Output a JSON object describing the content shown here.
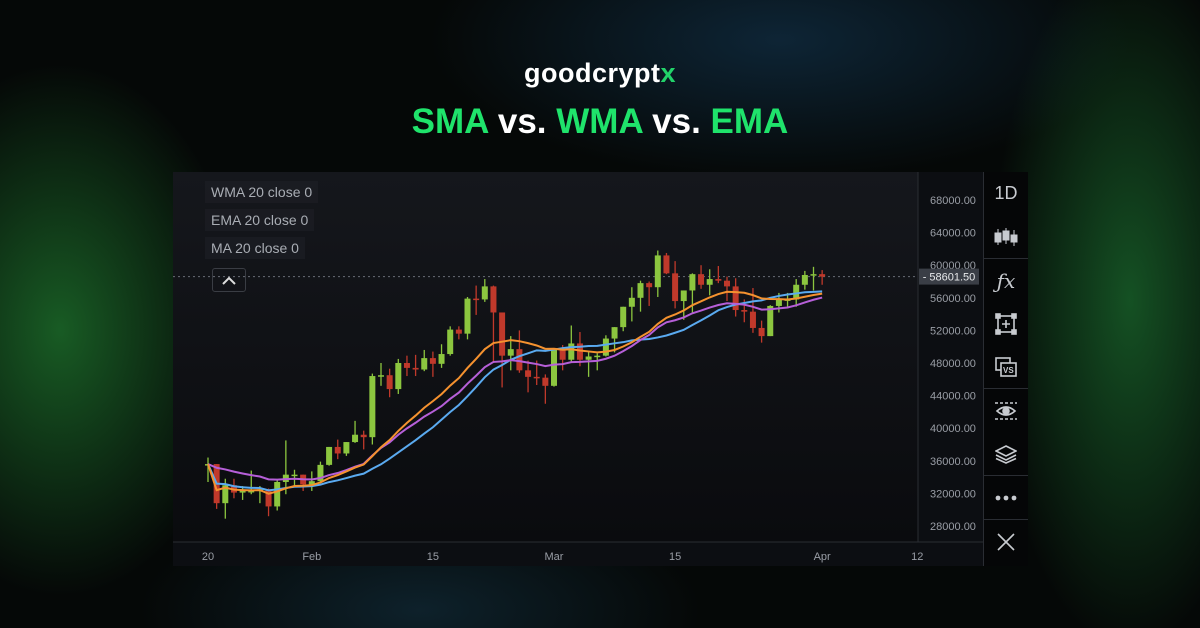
{
  "brand": {
    "logo_main": "goodcrypt",
    "logo_accent": "x"
  },
  "headline": {
    "w1": "SMA",
    "w2": " vs. ",
    "w3": "WMA",
    "w4": " vs. ",
    "w5": "EMA"
  },
  "legend": [
    "WMA 20 close 0",
    "EMA 20 close 0",
    "MA 20 close 0"
  ],
  "sidebar": {
    "interval": "1D",
    "icons": [
      "candlestick-icon",
      "fx-icon",
      "add-frame-icon",
      "compare-vs-icon",
      "eye-icon",
      "layers-icon",
      "more-icon",
      "close-icon"
    ]
  },
  "colors": {
    "up": "#8cc63f",
    "down": "#c0392b",
    "wma": "#f5922f",
    "ema": "#b65fd8",
    "ma": "#5aaaf0",
    "accent": "#1fe36b"
  },
  "chart_data": {
    "type": "candlestick",
    "title": "",
    "x_start": "2021-01-20",
    "ylim": [
      26000,
      70000
    ],
    "y_ticks": [
      "68000.00",
      "64000.00",
      "60000.00",
      "56000.00",
      "52000.00",
      "48000.00",
      "44000.00",
      "40000.00",
      "36000.00",
      "32000.00",
      "28000.00"
    ],
    "x_ticks": [
      {
        "label": "20",
        "date": "Jan 20"
      },
      {
        "label": "Feb",
        "date": "Feb 1"
      },
      {
        "label": "15",
        "date": "Feb 15"
      },
      {
        "label": "Mar",
        "date": "Mar 1"
      },
      {
        "label": "15",
        "date": "Mar 15"
      },
      {
        "label": "Apr",
        "date": "Apr 1"
      },
      {
        "label": "12",
        "date": "Apr 12"
      }
    ],
    "last_price": "58601.50",
    "ohlc": [
      [
        35500,
        36400,
        33400,
        35600
      ],
      [
        35600,
        35600,
        30100,
        30800
      ],
      [
        30800,
        33800,
        28900,
        33000
      ],
      [
        33000,
        33800,
        31400,
        32100
      ],
      [
        32100,
        32900,
        31200,
        32300
      ],
      [
        32300,
        34800,
        31900,
        32300
      ],
      [
        32300,
        32900,
        30800,
        32500
      ],
      [
        32500,
        32600,
        29200,
        30400
      ],
      [
        30400,
        33600,
        29900,
        33400
      ],
      [
        33400,
        38500,
        31900,
        34300
      ],
      [
        34300,
        34900,
        32900,
        34300
      ],
      [
        34300,
        34300,
        32300,
        33100
      ],
      [
        33100,
        34700,
        32300,
        33500
      ],
      [
        33500,
        35900,
        33400,
        35500
      ],
      [
        35500,
        37700,
        35400,
        37700
      ],
      [
        37700,
        38600,
        36200,
        36900
      ],
      [
        36900,
        38300,
        36600,
        38300
      ],
      [
        38300,
        40900,
        38200,
        39200
      ],
      [
        39200,
        39700,
        37400,
        38900
      ],
      [
        38900,
        46700,
        38000,
        46400
      ],
      [
        46400,
        48000,
        45200,
        46500
      ],
      [
        46500,
        47300,
        43800,
        44800
      ],
      [
        44800,
        48500,
        44200,
        48000
      ],
      [
        48000,
        48900,
        46400,
        47400
      ],
      [
        47400,
        49000,
        46400,
        47200
      ],
      [
        47200,
        49600,
        47000,
        48600
      ],
      [
        48600,
        49400,
        46300,
        47900
      ],
      [
        47900,
        50300,
        47400,
        49100
      ],
      [
        49100,
        52500,
        48900,
        52100
      ],
      [
        52100,
        52500,
        50900,
        51600
      ],
      [
        51600,
        56100,
        50900,
        55900
      ],
      [
        55900,
        57500,
        53900,
        55800
      ],
      [
        55800,
        58300,
        55500,
        57400
      ],
      [
        57400,
        57500,
        48000,
        54200
      ],
      [
        54200,
        54200,
        45000,
        48900
      ],
      [
        48900,
        51300,
        47100,
        49700
      ],
      [
        49700,
        52000,
        46800,
        47100
      ],
      [
        47100,
        48300,
        44400,
        46300
      ],
      [
        46300,
        48300,
        45300,
        46200
      ],
      [
        46200,
        46600,
        43000,
        45200
      ],
      [
        45200,
        49700,
        45100,
        49600
      ],
      [
        49600,
        50200,
        47100,
        48400
      ],
      [
        48400,
        52600,
        48100,
        50400
      ],
      [
        50400,
        51800,
        47600,
        48400
      ],
      [
        48400,
        49400,
        46300,
        48800
      ],
      [
        48800,
        49200,
        47100,
        48900
      ],
      [
        48900,
        51400,
        48800,
        51000
      ],
      [
        51000,
        52400,
        49300,
        52400
      ],
      [
        52400,
        54900,
        51900,
        54900
      ],
      [
        54900,
        57300,
        53100,
        56000
      ],
      [
        56000,
        58100,
        54300,
        57800
      ],
      [
        57800,
        58000,
        55000,
        57300
      ],
      [
        57300,
        61800,
        56100,
        61200
      ],
      [
        61200,
        61500,
        58900,
        59000
      ],
      [
        59000,
        60500,
        54700,
        55600
      ],
      [
        55600,
        56900,
        53300,
        56900
      ],
      [
        56900,
        59000,
        54200,
        58900
      ],
      [
        58900,
        60000,
        57100,
        57600
      ],
      [
        57600,
        59500,
        56300,
        58300
      ],
      [
        58300,
        59900,
        57800,
        58100
      ],
      [
        58100,
        58600,
        55600,
        57400
      ],
      [
        57400,
        58400,
        53700,
        54500
      ],
      [
        54500,
        55800,
        53000,
        54300
      ],
      [
        54300,
        57200,
        51700,
        52300
      ],
      [
        52300,
        53200,
        50500,
        51300
      ],
      [
        51300,
        55100,
        51300,
        55000
      ],
      [
        55000,
        56600,
        54200,
        55800
      ],
      [
        55800,
        56600,
        54700,
        55800
      ],
      [
        55800,
        58300,
        54900,
        57600
      ],
      [
        57600,
        59300,
        57000,
        58800
      ],
      [
        58800,
        59800,
        56900,
        58900
      ],
      [
        58900,
        59400,
        57600,
        58600
      ]
    ],
    "series": [
      {
        "name": "WMA 20 close 0",
        "type": "wma",
        "period": 20
      },
      {
        "name": "EMA 20 close 0",
        "type": "ema",
        "period": 20
      },
      {
        "name": "MA 20 close 0",
        "type": "sma",
        "period": 20
      }
    ]
  }
}
